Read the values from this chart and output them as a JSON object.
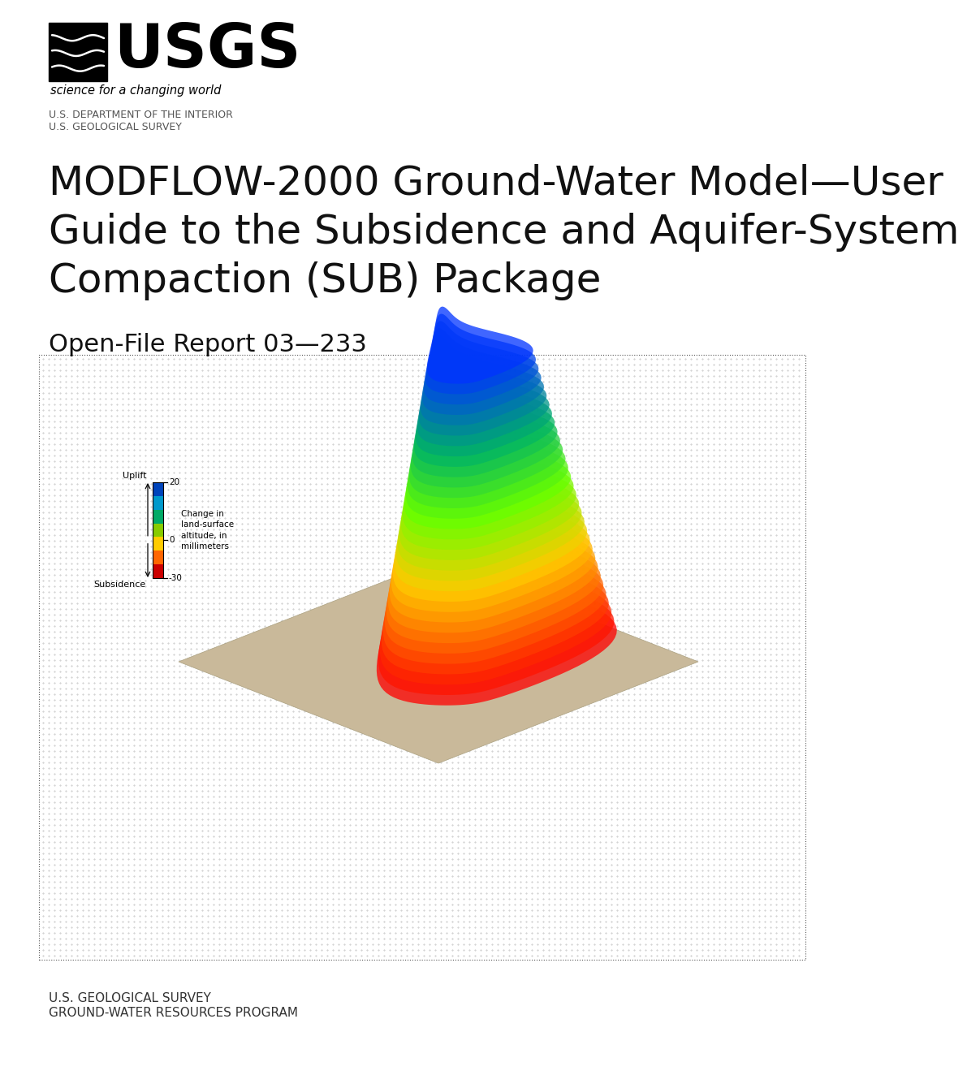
{
  "background_color": "#ffffff",
  "page_width": 10.2,
  "page_height": 13.2,
  "usgs_tagline": "science for a changing world",
  "dept_line1": "U.S. DEPARTMENT OF THE INTERIOR",
  "dept_line2": "U.S. GEOLOGICAL SURVEY",
  "title_line1": "MODFLOW-2000 Ground-Water Model—User",
  "title_line2": "Guide to the Subsidence and Aquifer-System",
  "title_line3": "Compaction (SUB) Package",
  "report_number": "Open-File Report 03—233",
  "footer_line1": "U.S. GEOLOGICAL SURVEY",
  "footer_line2": "GROUND-WATER RESOURCES PROGRAM",
  "title_fontsize": 36,
  "report_fontsize": 22,
  "dept_fontsize": 9,
  "footer_fontsize": 11,
  "box_edge_color": "#555555",
  "colorbar_colors_top_to_bot": [
    "#0044bb",
    "#0099cc",
    "#00aa66",
    "#88cc00",
    "#ffcc00",
    "#ff6600",
    "#cc0000"
  ],
  "legend_uplift": "Uplift",
  "legend_subsidence": "Subsidence",
  "legend_change_text": "Change in\nland-surface\naltitude, in\nmillimeters"
}
